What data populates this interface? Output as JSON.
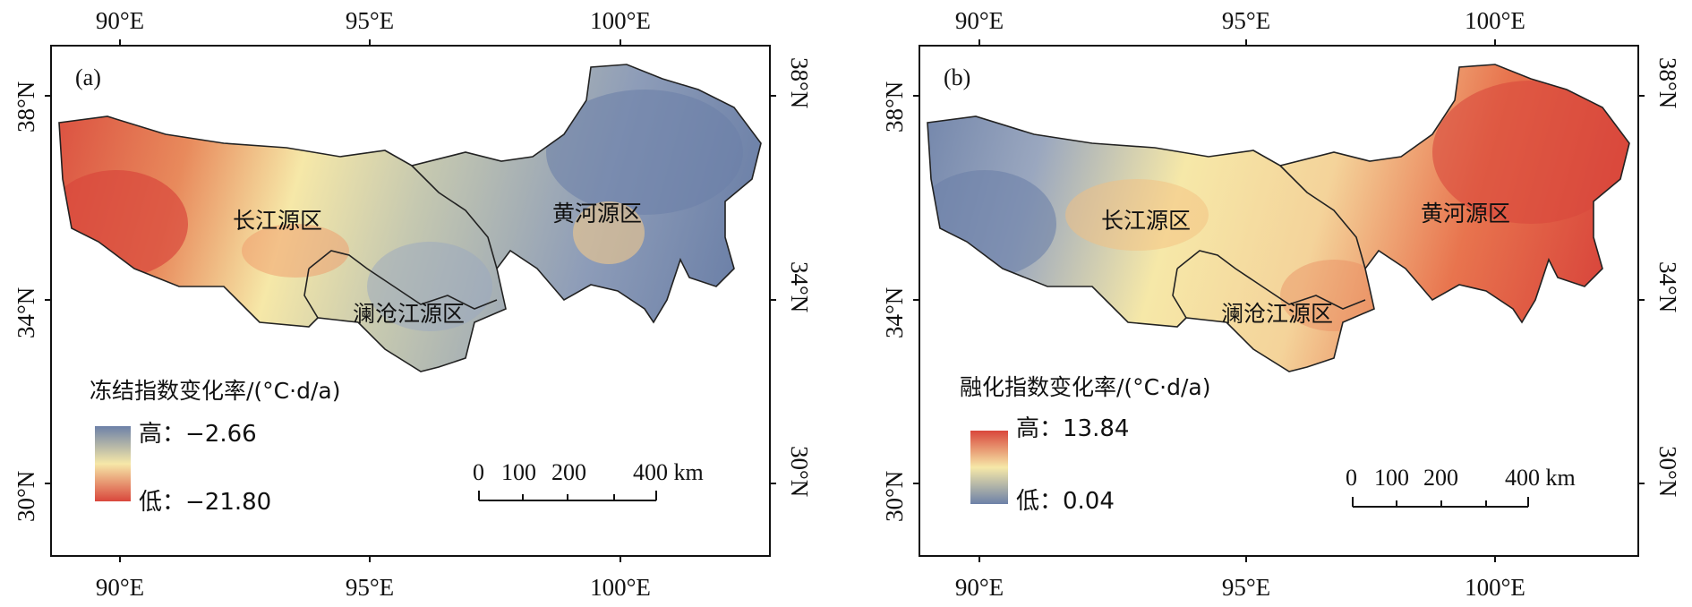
{
  "axes": {
    "lon_ticks": [
      "90°E",
      "95°E",
      "100°E"
    ],
    "lat_ticks": [
      "38°N",
      "34°N",
      "30°N"
    ]
  },
  "regions": [
    "长江源区",
    "澜沧江源区",
    "黄河源区"
  ],
  "scale_bar": {
    "labels": [
      "0",
      "100",
      "200",
      "400 km"
    ]
  },
  "panels": [
    {
      "label": "(a)",
      "legend_title": "冻结指数变化率/(°C·d/a)",
      "legend_high": "高：−2.66",
      "legend_low": "低：−21.80",
      "colors": {
        "high": "#6d81a8",
        "mid": "#f6e8a8",
        "low": "#d9473c"
      }
    },
    {
      "label": "(b)",
      "legend_title": "融化指数变化率/(°C·d/a)",
      "legend_high": "高：13.84",
      "legend_low": "低：0.04",
      "colors": {
        "high": "#d9473c",
        "mid": "#f6e8a8",
        "low": "#6d81a8"
      }
    }
  ]
}
